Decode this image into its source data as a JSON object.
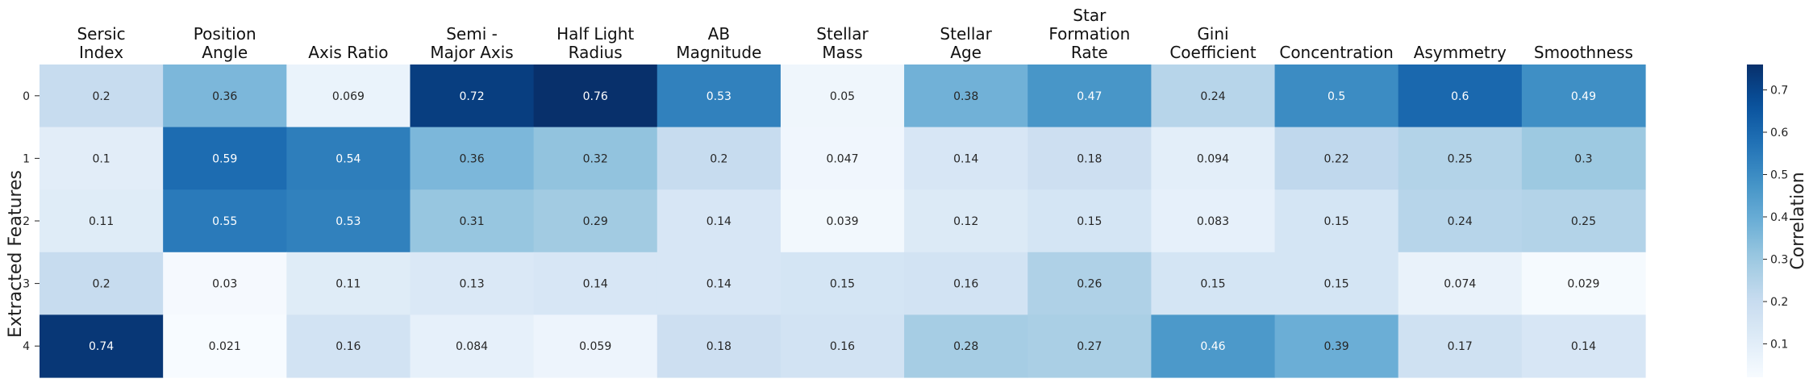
{
  "chart_data": {
    "type": "heatmap",
    "title": "",
    "xlabel": "",
    "ylabel": "Extracted Features",
    "columns": [
      [
        "Sersic",
        "Index"
      ],
      [
        "Position",
        "Angle"
      ],
      [
        "Axis Ratio"
      ],
      [
        "Semi -",
        "Major Axis"
      ],
      [
        "Half Light",
        "Radius"
      ],
      [
        "AB",
        "Magnitude"
      ],
      [
        "Stellar",
        "Mass"
      ],
      [
        "Stellar",
        "Age"
      ],
      [
        "Star",
        "Formation",
        "Rate"
      ],
      [
        "Gini",
        "Coefficient"
      ],
      [
        "Concentration"
      ],
      [
        "Asymmetry"
      ],
      [
        "Smoothness"
      ]
    ],
    "rows": [
      "0",
      "1",
      "2",
      "3",
      "4"
    ],
    "values": [
      [
        0.2,
        0.36,
        0.069,
        0.72,
        0.76,
        0.53,
        0.05,
        0.38,
        0.47,
        0.24,
        0.5,
        0.6,
        0.49
      ],
      [
        0.1,
        0.59,
        0.54,
        0.36,
        0.32,
        0.2,
        0.047,
        0.14,
        0.18,
        0.094,
        0.22,
        0.25,
        0.3
      ],
      [
        0.11,
        0.55,
        0.53,
        0.31,
        0.29,
        0.14,
        0.039,
        0.12,
        0.15,
        0.083,
        0.15,
        0.24,
        0.25
      ],
      [
        0.2,
        0.03,
        0.11,
        0.13,
        0.14,
        0.14,
        0.15,
        0.16,
        0.26,
        0.15,
        0.15,
        0.074,
        0.029
      ],
      [
        0.74,
        0.021,
        0.16,
        0.084,
        0.059,
        0.18,
        0.16,
        0.28,
        0.27,
        0.46,
        0.39,
        0.17,
        0.14
      ]
    ],
    "colormap": "Blues",
    "vmin": 0.021,
    "vmax": 0.76,
    "colorbar": {
      "label": "Correlation",
      "ticks": [
        "0.1",
        "0.2",
        "0.3",
        "0.4",
        "0.5",
        "0.6",
        "0.7"
      ],
      "tick_values": [
        0.1,
        0.2,
        0.3,
        0.4,
        0.5,
        0.6,
        0.7
      ]
    }
  }
}
